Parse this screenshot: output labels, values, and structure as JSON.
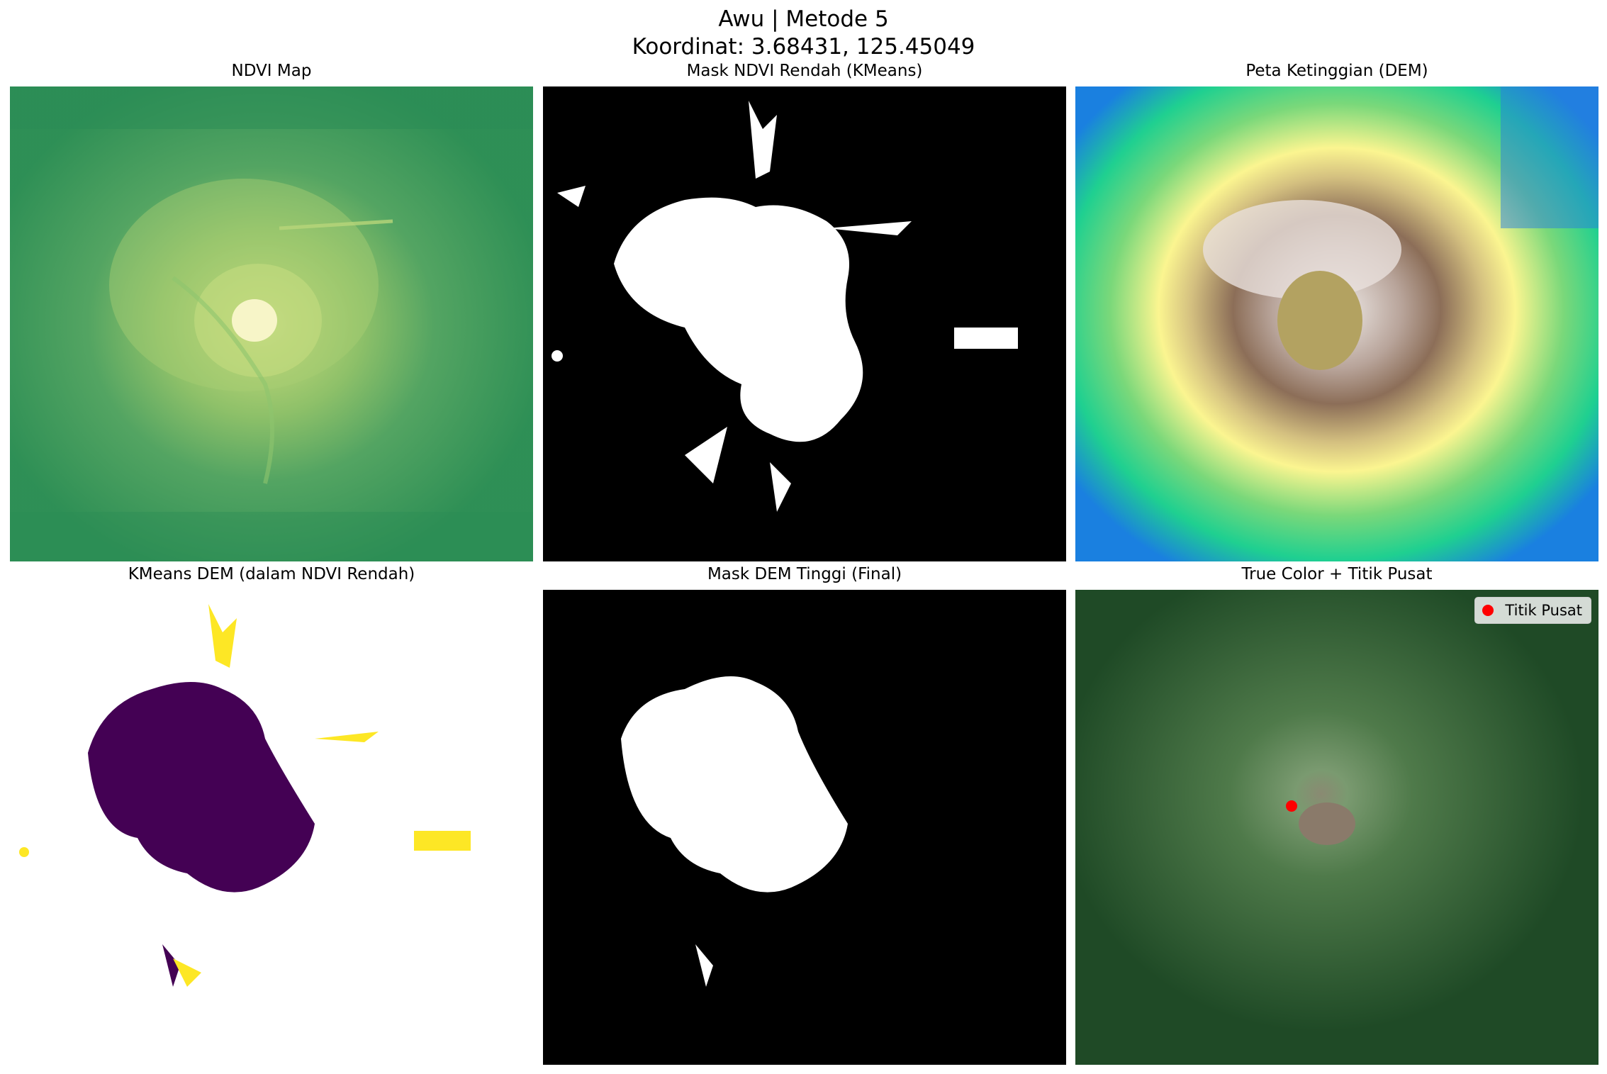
{
  "figure": {
    "title_line1": "Awu | Metode 5",
    "title_line2": "Koordinat: 3.68431, 125.45049"
  },
  "panels": [
    {
      "title": "NDVI Map",
      "colormap": "summer"
    },
    {
      "title": "Mask NDVI Rendah (KMeans)",
      "colormap": "gray"
    },
    {
      "title": "Peta Ketinggian (DEM)",
      "colormap": "terrain"
    },
    {
      "title": "KMeans DEM (dalam NDVI Rendah)",
      "colormap": "viridis"
    },
    {
      "title": "Mask DEM Tinggi (Final)",
      "colormap": "gray"
    },
    {
      "title": "True Color + Titik Pusat",
      "colormap": "rgb"
    }
  ],
  "legend": {
    "label": "Titik Pusat",
    "marker_color": "#ff0000"
  }
}
